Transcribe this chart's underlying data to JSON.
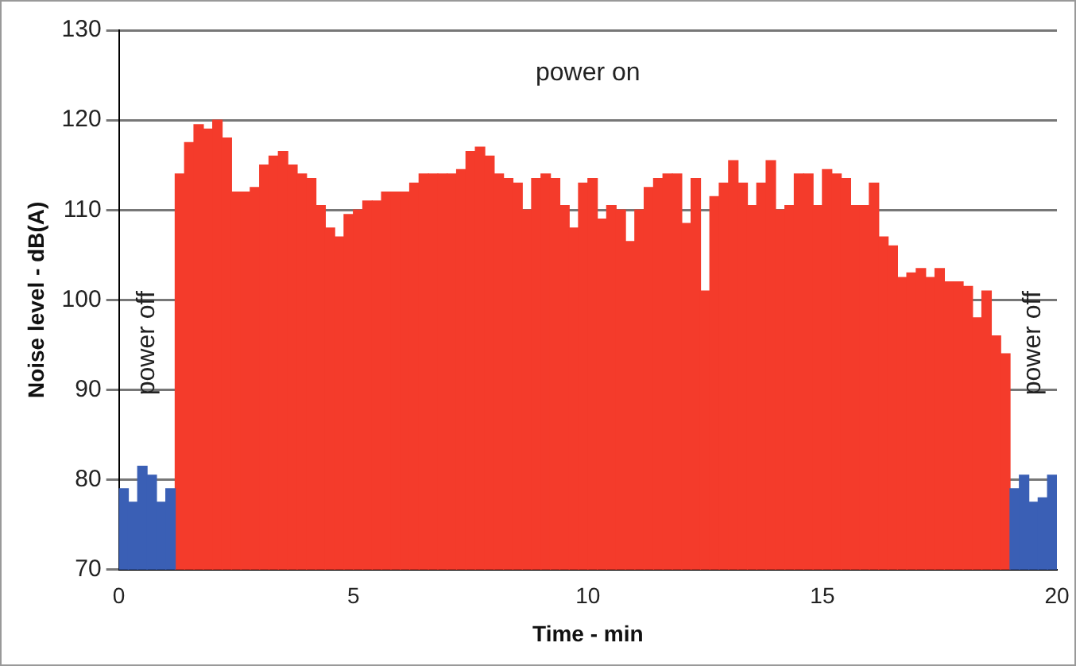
{
  "chart_data": {
    "type": "bar",
    "xlabel": "Time - min",
    "ylabel": "Noise level - dB(A)",
    "xlim": [
      0,
      20
    ],
    "xticks": [
      0,
      5,
      10,
      15,
      20
    ],
    "ylim": [
      70,
      130
    ],
    "yticks": [
      70,
      80,
      90,
      100,
      110,
      120,
      130
    ],
    "grid": "y",
    "legend": false,
    "annotations": [
      "power off",
      "power on",
      "power off"
    ],
    "series": [
      {
        "color": "#3a5fb5",
        "x": [
          0.1,
          0.3,
          0.5,
          0.7,
          0.9,
          1.1,
          19.1,
          19.3,
          19.5,
          19.7,
          19.9
        ],
        "values": [
          79,
          77.5,
          81.5,
          80.5,
          77.5,
          79,
          79,
          80.5,
          77.5,
          78,
          80.5
        ]
      },
      {
        "color": "#f43b2b",
        "x": [
          1.3,
          1.5,
          1.7,
          1.9,
          2.1,
          2.3,
          2.5,
          2.7,
          2.9,
          3.1,
          3.3,
          3.5,
          3.7,
          3.9,
          4.1,
          4.3,
          4.5,
          4.7,
          4.9,
          5.1,
          5.3,
          5.5,
          5.7,
          5.9,
          6.1,
          6.3,
          6.5,
          6.7,
          6.9,
          7.1,
          7.3,
          7.5,
          7.7,
          7.9,
          8.1,
          8.3,
          8.5,
          8.7,
          8.9,
          9.1,
          9.3,
          9.5,
          9.7,
          9.9,
          10.1,
          10.3,
          10.5,
          10.7,
          10.9,
          11.1,
          11.3,
          11.5,
          11.7,
          11.9,
          12.1,
          12.3,
          12.5,
          12.7,
          12.9,
          13.1,
          13.3,
          13.5,
          13.7,
          13.9,
          14.1,
          14.3,
          14.5,
          14.7,
          14.9,
          15.1,
          15.3,
          15.5,
          15.7,
          15.9,
          16.1,
          16.3,
          16.5,
          16.7,
          16.9,
          17.1,
          17.3,
          17.5,
          17.7,
          17.9,
          18.1,
          18.3,
          18.5,
          18.7,
          18.9
        ],
        "values": [
          114,
          117.5,
          119.5,
          119,
          120,
          118,
          112,
          112,
          112.5,
          115,
          116,
          116.5,
          115,
          114,
          113.5,
          110.5,
          108,
          107,
          109.5,
          110,
          111,
          111,
          112,
          112,
          112,
          113,
          114,
          114,
          114,
          114,
          114.5,
          116.5,
          117,
          116,
          114,
          113.5,
          113,
          110,
          113.5,
          114,
          113.5,
          110.5,
          108,
          113,
          113.5,
          109,
          110.5,
          110,
          106.5,
          110,
          112.5,
          113.5,
          114,
          114,
          108.5,
          113.5,
          101,
          111.5,
          113,
          115.5,
          113,
          110.5,
          113,
          115.5,
          110,
          110.5,
          114,
          114,
          110.5,
          114.5,
          114,
          113.5,
          110.5,
          110.5,
          113,
          107,
          106,
          102.5,
          103,
          103.5,
          102.5,
          103.5,
          102,
          102,
          101.5,
          98,
          101,
          96,
          94
        ]
      }
    ]
  }
}
